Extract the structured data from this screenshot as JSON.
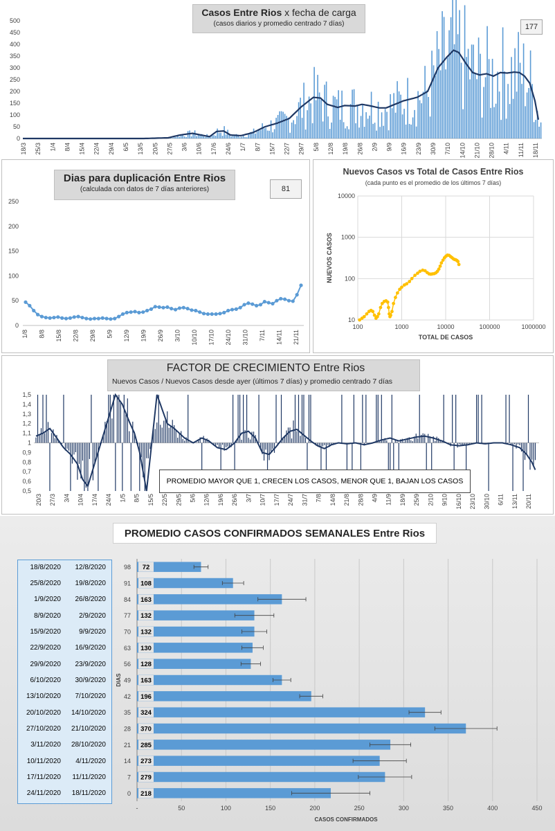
{
  "panel1": {
    "title_bold": "Casos Entre Rios",
    "title_rest": " x fecha de carga",
    "subtitle": "(casos diarios y promedio  centrado 7 días)",
    "badge": "177"
  },
  "panel2": {
    "title": "Dias para duplicación Entre Rios",
    "subtitle": "(calculada con datos de 7 días anteriores)",
    "badge": "81"
  },
  "panel3": {
    "title": "Nuevos Casos vs Total de Casos Entre Rios",
    "subtitle": "(cada punto es el promedio de los últimos 7 días)"
  },
  "panel4": {
    "title_part1": "FACTOR DE CRECIMIENTO",
    "title_part2": " Entre Rios",
    "subtitle": "Nuevos Casos  / Nuevos Casos desde ayer (últimos 7 días) y promedio  centrado 7 días",
    "note": "PROMEDIO MAYOR QUE 1, CRECEN LOS CASOS, MENOR QUE 1, BAJAN LOS CASOS"
  },
  "panel5": {
    "title": "PROMEDIO CASOS CONFIRMADOS SEMANALES Entre Rios"
  },
  "colors": {
    "bar_blue": "#5b9bd5",
    "line_navy": "#1f3864",
    "scatter_gold": "#ffc000"
  },
  "chart_data": [
    {
      "type": "bar",
      "description_id": "casos_diarios",
      "title": "Casos Entre Rios x fecha de carga",
      "subtitle": "(casos diarios y promedio  centrado 7 días)",
      "ylim": [
        0,
        500
      ],
      "yticks": [
        0,
        50,
        100,
        150,
        200,
        250,
        300,
        350,
        400,
        450,
        500
      ],
      "xtick_labels": [
        "18/3",
        "25/3",
        "1/4",
        "8/4",
        "15/4",
        "22/4",
        "29/4",
        "6/5",
        "13/5",
        "20/5",
        "27/5",
        "3/6",
        "10/6",
        "17/6",
        "24/6",
        "1/7",
        "8/7",
        "15/7",
        "22/7",
        "29/7",
        "5/8",
        "12/8",
        "19/8",
        "26/8",
        "2/9",
        "9/9",
        "16/9",
        "23/9",
        "30/9",
        "7/10",
        "14/10",
        "21/10",
        "28/10",
        "4/11",
        "11/11",
        "18/11"
      ],
      "series": [
        {
          "name": "",
          "kind": "line_average",
          "keypoints_day_value": [
            [
              0,
              0
            ],
            [
              70,
              0
            ],
            [
              84,
              3
            ],
            [
              91,
              15
            ],
            [
              98,
              22
            ],
            [
              105,
              12
            ],
            [
              108,
              8
            ],
            [
              112,
              30
            ],
            [
              116,
              32
            ],
            [
              120,
              15
            ],
            [
              126,
              12
            ],
            [
              133,
              25
            ],
            [
              140,
              50
            ],
            [
              147,
              65
            ],
            [
              154,
              85
            ],
            [
              161,
              135
            ],
            [
              168,
              175
            ],
            [
              172,
              172
            ],
            [
              176,
              145
            ],
            [
              182,
              132
            ],
            [
              186,
              140
            ],
            [
              192,
              138
            ],
            [
              196,
              145
            ],
            [
              200,
              140
            ],
            [
              206,
              130
            ],
            [
              210,
              130
            ],
            [
              215,
              145
            ],
            [
              220,
              160
            ],
            [
              228,
              175
            ],
            [
              234,
              200
            ],
            [
              240,
              300
            ],
            [
              245,
              345
            ],
            [
              249,
              375
            ],
            [
              252,
              365
            ],
            [
              256,
              320
            ],
            [
              260,
              280
            ],
            [
              264,
              270
            ],
            [
              268,
              275
            ],
            [
              272,
              265
            ],
            [
              276,
              280
            ],
            [
              280,
              278
            ],
            [
              284,
              282
            ],
            [
              287,
              280
            ],
            [
              290,
              265
            ],
            [
              293,
              235
            ],
            [
              296,
              160
            ],
            [
              298,
              80
            ]
          ]
        }
      ],
      "badge": "177"
    },
    {
      "type": "line",
      "description_id": "dias_duplicacion",
      "title": "Dias para duplicación Entre Rios",
      "subtitle": "(calculada con datos de 7 días anteriores)",
      "ylim": [
        0,
        250
      ],
      "yticks": [
        0,
        50,
        100,
        150,
        200,
        250
      ],
      "xtick_labels": [
        "1/8",
        "8/8",
        "15/8",
        "22/8",
        "29/8",
        "5/9",
        "12/9",
        "19/9",
        "26/9",
        "3/10",
        "10/10",
        "17/10",
        "24/10",
        "31/10",
        "7/11",
        "14/11",
        "21/11"
      ],
      "values": [
        47,
        40,
        30,
        22,
        18,
        16,
        15,
        16,
        17,
        15,
        14,
        15,
        17,
        18,
        16,
        14,
        13,
        14,
        14,
        15,
        14,
        13,
        14,
        18,
        23,
        26,
        27,
        28,
        26,
        27,
        30,
        33,
        38,
        37,
        36,
        37,
        34,
        32,
        35,
        36,
        34,
        31,
        30,
        27,
        24,
        23,
        23,
        23,
        24,
        26,
        30,
        32,
        33,
        36,
        42,
        45,
        43,
        40,
        42,
        48,
        46,
        44,
        50,
        54,
        53,
        50,
        49,
        62,
        81
      ],
      "badge": "81"
    },
    {
      "type": "scatter",
      "description_id": "nuevos_vs_total",
      "title": "Nuevos Casos vs Total de Casos Entre Rios",
      "subtitle": "(cada punto es el promedio de los últimos 7 días)",
      "xlabel": "TOTAL DE CASOS",
      "ylabel": "NUEVOS CASOS",
      "xscale": "log",
      "yscale": "log",
      "xlim": [
        100,
        1000000
      ],
      "ylim": [
        10,
        10000
      ],
      "xticks": [
        100,
        1000,
        10000,
        100000,
        1000000
      ],
      "yticks": [
        10,
        100,
        1000,
        10000
      ],
      "points": [
        [
          110,
          10
        ],
        [
          125,
          11
        ],
        [
          140,
          12
        ],
        [
          160,
          14
        ],
        [
          180,
          16
        ],
        [
          200,
          17
        ],
        [
          220,
          16
        ],
        [
          240,
          13
        ],
        [
          260,
          11
        ],
        [
          280,
          12
        ],
        [
          300,
          14
        ],
        [
          330,
          20
        ],
        [
          360,
          25
        ],
        [
          400,
          28
        ],
        [
          440,
          29
        ],
        [
          480,
          27
        ],
        [
          500,
          20
        ],
        [
          520,
          14
        ],
        [
          540,
          12
        ],
        [
          560,
          13
        ],
        [
          600,
          16
        ],
        [
          650,
          25
        ],
        [
          720,
          35
        ],
        [
          800,
          45
        ],
        [
          900,
          55
        ],
        [
          1000,
          62
        ],
        [
          1150,
          70
        ],
        [
          1300,
          75
        ],
        [
          1500,
          85
        ],
        [
          1700,
          100
        ],
        [
          2000,
          120
        ],
        [
          2300,
          135
        ],
        [
          2600,
          150
        ],
        [
          3000,
          160
        ],
        [
          3400,
          155
        ],
        [
          3800,
          140
        ],
        [
          4200,
          130
        ],
        [
          4600,
          128
        ],
        [
          5000,
          130
        ],
        [
          5500,
          132
        ],
        [
          6000,
          138
        ],
        [
          6500,
          150
        ],
        [
          7000,
          170
        ],
        [
          7500,
          200
        ],
        [
          8000,
          240
        ],
        [
          8700,
          280
        ],
        [
          9400,
          320
        ],
        [
          10200,
          350
        ],
        [
          11000,
          370
        ],
        [
          12000,
          365
        ],
        [
          13000,
          340
        ],
        [
          14000,
          320
        ],
        [
          15000,
          300
        ],
        [
          16000,
          290
        ],
        [
          17000,
          285
        ],
        [
          18000,
          275
        ],
        [
          19000,
          260
        ],
        [
          20000,
          220
        ]
      ]
    },
    {
      "type": "bar",
      "description_id": "factor_crecimiento",
      "title": "FACTOR DE CRECIMIENTO Entre Rios",
      "subtitle": "Nuevos Casos  / Nuevos Casos desde ayer (últimos 7 días) y promedio  centrado 7 días",
      "baseline": 1,
      "ylim": [
        0.5,
        1.5
      ],
      "yticks": [
        0.5,
        0.6,
        0.7,
        0.8,
        0.9,
        1,
        1.1,
        1.2,
        1.3,
        1.4,
        1.5
      ],
      "ytick_labels": [
        "0,5",
        "0,6",
        "0,7",
        "0,8",
        "0,9",
        "1",
        "1,1",
        "1,2",
        "1,3",
        "1,4",
        "1,5"
      ],
      "xtick_labels": [
        "20/3",
        "27/3",
        "3/4",
        "10/4",
        "17/4",
        "24/4",
        "1/5",
        "8/5",
        "15/5",
        "22/5",
        "29/5",
        "5/6",
        "12/6",
        "19/6",
        "26/6",
        "3/7",
        "10/7",
        "17/7",
        "24/7",
        "31/7",
        "7/8",
        "14/8",
        "21/8",
        "28/8",
        "4/9",
        "11/9",
        "18/9",
        "25/9",
        "2/10",
        "9/10",
        "16/10",
        "23/10",
        "30/10",
        "6/11",
        "13/11",
        "20/11"
      ],
      "series": [
        {
          "name": "",
          "kind": "line_average",
          "keypoints_day_value": [
            [
              0,
              1.07
            ],
            [
              4,
              1.1
            ],
            [
              8,
              1.15
            ],
            [
              12,
              1.05
            ],
            [
              16,
              0.95
            ],
            [
              20,
              0.88
            ],
            [
              24,
              0.78
            ],
            [
              27,
              0.62
            ],
            [
              30,
              0.55
            ],
            [
              46,
              1.5
            ],
            [
              50,
              1.4
            ],
            [
              54,
              1.22
            ],
            [
              57,
              1.1
            ],
            [
              60,
              0.9
            ],
            [
              64,
              0.5
            ],
            [
              70,
              1.5
            ],
            [
              76,
              1.2
            ],
            [
              80,
              1.15
            ],
            [
              86,
              1.05
            ],
            [
              91,
              1.0
            ],
            [
              96,
              1.05
            ],
            [
              100,
              1.02
            ],
            [
              105,
              0.95
            ],
            [
              110,
              0.93
            ],
            [
              115,
              1.0
            ],
            [
              119,
              1.1
            ],
            [
              123,
              1.12
            ],
            [
              127,
              1.05
            ],
            [
              131,
              0.9
            ],
            [
              135,
              0.88
            ],
            [
              139,
              0.96
            ],
            [
              143,
              1.05
            ],
            [
              147,
              1.12
            ],
            [
              151,
              1.14
            ],
            [
              155,
              1.08
            ],
            [
              159,
              1.02
            ],
            [
              163,
              0.97
            ],
            [
              167,
              0.94
            ],
            [
              171,
              0.98
            ],
            [
              175,
              1.0
            ],
            [
              180,
              0.99
            ],
            [
              185,
              1.0
            ],
            [
              190,
              0.98
            ],
            [
              195,
              1.0
            ],
            [
              200,
              1.03
            ],
            [
              205,
              1.05
            ],
            [
              210,
              1.02
            ],
            [
              215,
              1.04
            ],
            [
              220,
              1.06
            ],
            [
              225,
              1.07
            ],
            [
              230,
              1.05
            ],
            [
              235,
              1.02
            ],
            [
              240,
              0.98
            ],
            [
              245,
              0.97
            ],
            [
              250,
              0.98
            ],
            [
              255,
              1.0
            ],
            [
              260,
              0.99
            ],
            [
              265,
              1.0
            ],
            [
              270,
              1.0
            ],
            [
              275,
              0.98
            ],
            [
              280,
              0.95
            ],
            [
              284,
              0.88
            ],
            [
              287,
              0.8
            ],
            [
              289,
              0.72
            ]
          ]
        }
      ],
      "note": "PROMEDIO MAYOR QUE 1, CRECEN LOS CASOS, MENOR QUE 1, BAJAN LOS CASOS"
    },
    {
      "type": "bar",
      "orientation": "horizontal",
      "description_id": "promedio_semanal",
      "title": "PROMEDIO CASOS CONFIRMADOS SEMANALES Entre Rios",
      "xlabel": "CASOS CONFIRMADOS",
      "ylabel": "DIAS",
      "xlim": [
        0,
        450
      ],
      "xticks": [
        0,
        50,
        100,
        150,
        200,
        250,
        300,
        350,
        400,
        450
      ],
      "xtick_labels": [
        "-",
        "50",
        "100",
        "150",
        "200",
        "250",
        "300",
        "350",
        "400",
        "450"
      ],
      "rows": [
        {
          "end": "18/8/2020",
          "start": "12/8/2020",
          "dias": "98",
          "value": 72,
          "err": 8
        },
        {
          "end": "25/8/2020",
          "start": "19/8/2020",
          "dias": "91",
          "value": 108,
          "err": 12
        },
        {
          "end": "1/9/2020",
          "start": "26/8/2020",
          "dias": "84",
          "value": 163,
          "err": 27
        },
        {
          "end": "8/9/2020",
          "start": "2/9/2020",
          "dias": "77",
          "value": 132,
          "err": 22
        },
        {
          "end": "15/9/2020",
          "start": "9/9/2020",
          "dias": "70",
          "value": 132,
          "err": 14
        },
        {
          "end": "22/9/2020",
          "start": "16/9/2020",
          "dias": "63",
          "value": 130,
          "err": 12
        },
        {
          "end": "29/9/2020",
          "start": "23/9/2020",
          "dias": "56",
          "value": 128,
          "err": 11
        },
        {
          "end": "6/10/2020",
          "start": "30/9/2020",
          "dias": "49",
          "value": 163,
          "err": 10
        },
        {
          "end": "13/10/2020",
          "start": "7/10/2020",
          "dias": "42",
          "value": 196,
          "err": 13
        },
        {
          "end": "20/10/2020",
          "start": "14/10/2020",
          "dias": "35",
          "value": 324,
          "err": 18
        },
        {
          "end": "27/10/2020",
          "start": "21/10/2020",
          "dias": "28",
          "value": 370,
          "err": 35
        },
        {
          "end": "3/11/2020",
          "start": "28/10/2020",
          "dias": "21",
          "value": 285,
          "err": 23
        },
        {
          "end": "10/11/2020",
          "start": "4/11/2020",
          "dias": "14",
          "value": 273,
          "err": 30
        },
        {
          "end": "17/11/2020",
          "start": "11/11/2020",
          "dias": "7",
          "value": 279,
          "err": 30
        },
        {
          "end": "24/11/2020",
          "start": "18/11/2020",
          "dias": "0",
          "value": 218,
          "err": 44
        }
      ]
    }
  ]
}
